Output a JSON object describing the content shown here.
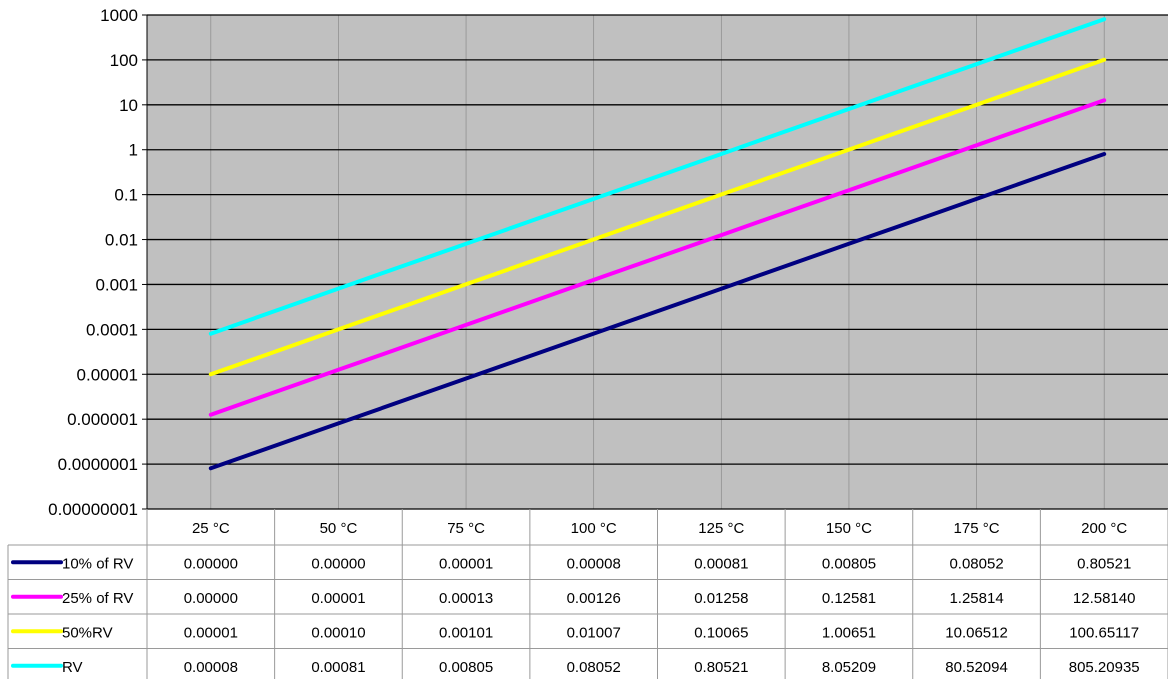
{
  "chart_data": {
    "type": "line",
    "title": "",
    "xlabel": "",
    "ylabel": "",
    "y_scale": "log",
    "ylim": [
      1e-08,
      1000
    ],
    "y_ticks": [
      "0.00000001",
      "0.0000001",
      "0.000001",
      "0.00001",
      "0.0001",
      "0.001",
      "0.01",
      "0.1",
      "1",
      "10",
      "100",
      "1000"
    ],
    "categories": [
      "25 °C",
      "50 °C",
      "75 °C",
      "100 °C",
      "125 °C",
      "150 °C",
      "175 °C",
      "200 °C"
    ],
    "grid": true,
    "legend": "data-table-left",
    "plot_background": "#c0c0c0",
    "series": [
      {
        "name": "10% of RV",
        "color": "#000080",
        "values": [
          8.05e-08,
          8.05e-07,
          8.05e-06,
          8.05e-05,
          0.000805,
          0.00805,
          0.0805,
          0.80521
        ],
        "table_values": [
          "0.00000",
          "0.00000",
          "0.00001",
          "0.00008",
          "0.00081",
          "0.00805",
          "0.08052",
          "0.80521"
        ]
      },
      {
        "name": "25% of RV",
        "color": "#ff00ff",
        "values": [
          1.26e-06,
          1.26e-05,
          0.000126,
          0.00126,
          0.01258,
          0.12581,
          1.25814,
          12.5814
        ],
        "table_values": [
          "0.00000",
          "0.00001",
          "0.00013",
          "0.00126",
          "0.01258",
          "0.12581",
          "1.25814",
          "12.58140"
        ]
      },
      {
        "name": "50%RV",
        "color": "#ffff00",
        "values": [
          1e-05,
          0.0001,
          0.00101,
          0.01007,
          0.10065,
          1.00651,
          10.06512,
          100.65117
        ],
        "table_values": [
          "0.00001",
          "0.00010",
          "0.00101",
          "0.01007",
          "0.10065",
          "1.00651",
          "10.06512",
          "100.65117"
        ]
      },
      {
        "name": " RV",
        "color": "#00ffff",
        "values": [
          8e-05,
          0.00081,
          0.00805,
          0.08052,
          0.80521,
          8.05209,
          80.52094,
          805.20935
        ],
        "table_values": [
          "0.00008",
          "0.00081",
          "0.00805",
          "0.08052",
          "0.80521",
          "8.05209",
          "80.52094",
          "805.20935"
        ]
      }
    ]
  }
}
